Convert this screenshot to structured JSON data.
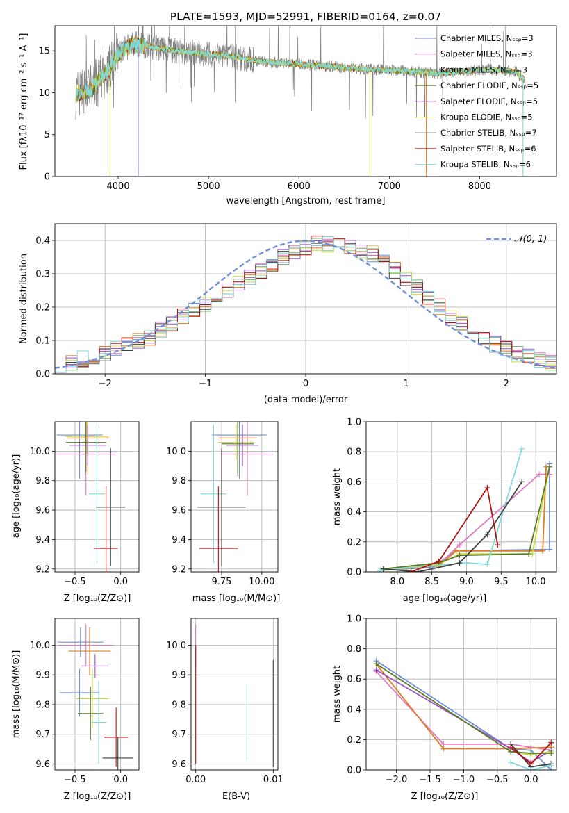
{
  "title": "PLATE=1593, MJD=52991, FIBERID=0164, z=0.07",
  "colors": {
    "chabrier_miles": "#6f8fd8",
    "salpeter_miles": "#e377c2",
    "kroupa_miles": "#70b870",
    "chabrier_elodie": "#5a7a2a",
    "salpeter_elodie": "#9b4fc4",
    "kroupa_elodie": "#c8d840",
    "chabrier_stelib": "#404040",
    "salpeter_stelib": "#b31010",
    "kroupa_stelib": "#80d8d8",
    "gaussian": "#6f8fd8",
    "orange": "#e07b20",
    "data": "#808080"
  },
  "spectrum": {
    "xlabel": "wavelength [Angstrom, rest frame]",
    "ylabel": "Flux [fλ10⁻¹⁷ erg cm⁻² s⁻¹ A⁻¹]",
    "legend": [
      {
        "label": "Chabrier MILES, Nₛₛₚ=3",
        "color": "chabrier_miles"
      },
      {
        "label": "Salpeter MILES, Nₛₛₚ=3",
        "color": "salpeter_miles"
      },
      {
        "label": "Kroupa MILES, Nₛₛₚ=3",
        "color": "kroupa_miles"
      },
      {
        "label": "Chabrier ELODIE, Nₛₛₚ=5",
        "color": "chabrier_elodie"
      },
      {
        "label": "Salpeter ELODIE, Nₛₛₚ=5",
        "color": "salpeter_elodie"
      },
      {
        "label": "Kroupa ELODIE, Nₛₛₚ=5",
        "color": "kroupa_elodie"
      },
      {
        "label": "Chabrier STELIB, Nₛₛₚ=7",
        "color": "chabrier_stelib"
      },
      {
        "label": "Salpeter STELIB, Nₛₛₚ=6",
        "color": "salpeter_stelib"
      },
      {
        "label": "Kroupa STELIB, Nₛₛₚ=6",
        "color": "kroupa_stelib"
      }
    ]
  },
  "residuals": {
    "xlabel": "(data-model)/error",
    "ylabel": "Normed distribution",
    "legend_label": "𝒩(0, 1)"
  },
  "labels": {
    "age_y": "age  [log₁₀(age/yr)]",
    "z_x": "Z [log₁₀(Z/Z⊙)]",
    "mass_x": "mass [log₁₀(M/M⊙)]",
    "mass_y": "mass [log₁₀(M/M⊙)]",
    "age_x": "age  [log₁₀(age/yr)]",
    "weight_y": "mass weight",
    "ebv_x": "E(B-V)"
  },
  "chart_data": [
    {
      "type": "line",
      "panel": "spectrum",
      "title": "PLATE=1593, MJD=52991, FIBERID=0164, z=0.07",
      "xlim": [
        3300,
        8850
      ],
      "ylim": [
        0,
        18
      ],
      "xticks": [
        4000,
        5000,
        6000,
        7000,
        8000
      ],
      "yticks": [
        0,
        5,
        10,
        15
      ],
      "continuum": {
        "x": [
          3530,
          3700,
          3900,
          4000,
          4150,
          4300,
          4500,
          4800,
          5000,
          5300,
          5600,
          6000,
          6300,
          6600,
          6900,
          7200,
          7500,
          7800,
          8100,
          8400,
          8500
        ],
        "y": [
          9.8,
          10.4,
          12.8,
          14.6,
          15.8,
          15.6,
          15.2,
          14.8,
          14.6,
          14.3,
          13.7,
          13.4,
          13.2,
          12.9,
          12.7,
          12.6,
          12.3,
          12.5,
          12.8,
          12.5,
          11.5
        ]
      },
      "grid": false
    },
    {
      "type": "line",
      "panel": "residuals",
      "xlim": [
        -2.5,
        2.5
      ],
      "ylim": [
        0,
        0.45
      ],
      "xticks": [
        -2,
        -1,
        0,
        1,
        2
      ],
      "yticks": [
        0.0,
        0.1,
        0.2,
        0.3,
        0.4
      ],
      "bins": 45,
      "hist_reference": [
        0.03,
        0.035,
        0.045,
        0.05,
        0.06,
        0.075,
        0.085,
        0.1,
        0.11,
        0.13,
        0.15,
        0.17,
        0.19,
        0.21,
        0.23,
        0.25,
        0.27,
        0.29,
        0.31,
        0.33,
        0.35,
        0.37,
        0.38,
        0.39,
        0.39,
        0.395,
        0.38,
        0.37,
        0.36,
        0.34,
        0.31,
        0.28,
        0.26,
        0.23,
        0.2,
        0.17,
        0.15,
        0.13,
        0.11,
        0.09,
        0.075,
        0.06,
        0.05,
        0.04,
        0.035
      ],
      "grid": true
    },
    {
      "type": "scatter",
      "panel": "age_vs_Z",
      "xlim": [
        -0.72,
        0.2
      ],
      "ylim": [
        9.18,
        10.2
      ],
      "xticks": [
        -0.5,
        0.0
      ],
      "yticks": [
        9.2,
        9.4,
        9.6,
        9.8,
        10.0
      ],
      "points": [
        {
          "series": "chabrier_miles",
          "x": -0.45,
          "y": 10.11,
          "xerr": 0.25,
          "yerr": 0.3
        },
        {
          "series": "salpeter_miles",
          "x": -0.38,
          "y": 9.98,
          "xerr": 0.33,
          "yerr": 0.28
        },
        {
          "series": "orange",
          "x": -0.36,
          "y": 10.09,
          "xerr": 0.23,
          "yerr": 0.25
        },
        {
          "series": "kroupa_elodie",
          "x": -0.37,
          "y": 10.1,
          "xerr": 0.24,
          "yerr": 0.12
        },
        {
          "series": "chabrier_elodie",
          "x": -0.38,
          "y": 10.06,
          "xerr": 0.22,
          "yerr": 0.2
        },
        {
          "series": "salpeter_elodie",
          "x": -0.36,
          "y": 10.04,
          "xerr": 0.2,
          "yerr": 0.14
        },
        {
          "series": "kroupa_stelib",
          "x": -0.26,
          "y": 9.71,
          "xerr": 0.09,
          "yerr": 0.47
        },
        {
          "series": "chabrier_stelib",
          "x": -0.11,
          "y": 9.62,
          "xerr": 0.16,
          "yerr": 0.4
        },
        {
          "series": "salpeter_stelib",
          "x": -0.16,
          "y": 9.34,
          "xerr": 0.13,
          "yerr": 0.42
        }
      ],
      "grid": true
    },
    {
      "type": "scatter",
      "panel": "age_vs_mass",
      "xlim": [
        9.56,
        10.1
      ],
      "ylim": [
        9.18,
        10.2
      ],
      "xticks": [
        9.75,
        10.0
      ],
      "yticks": [
        9.2,
        9.4,
        9.6,
        9.8,
        10.0
      ],
      "points": [
        {
          "series": "chabrier_miles",
          "x": 9.86,
          "y": 10.11,
          "xerr": 0.17,
          "yerr": 0.3
        },
        {
          "series": "salpeter_miles",
          "x": 9.91,
          "y": 9.98,
          "xerr": 0.16,
          "yerr": 0.28
        },
        {
          "series": "orange",
          "x": 9.85,
          "y": 10.09,
          "xerr": 0.12,
          "yerr": 0.26
        },
        {
          "series": "kroupa_elodie",
          "x": 9.84,
          "y": 10.06,
          "xerr": 0.11,
          "yerr": 0.12
        },
        {
          "series": "chabrier_elodie",
          "x": 9.85,
          "y": 10.05,
          "xerr": 0.1,
          "yerr": 0.2
        },
        {
          "series": "salpeter_elodie",
          "x": 9.88,
          "y": 10.04,
          "xerr": 0.1,
          "yerr": 0.14
        },
        {
          "series": "kroupa_stelib",
          "x": 9.7,
          "y": 9.71,
          "xerr": 0.08,
          "yerr": 0.47
        },
        {
          "series": "chabrier_stelib",
          "x": 9.75,
          "y": 9.62,
          "xerr": 0.15,
          "yerr": 0.4
        },
        {
          "series": "salpeter_stelib",
          "x": 9.73,
          "y": 9.34,
          "xerr": 0.12,
          "yerr": 0.42
        }
      ],
      "grid": true
    },
    {
      "type": "line",
      "panel": "weight_vs_age",
      "xlim": [
        7.55,
        10.3
      ],
      "ylim": [
        0,
        1.0
      ],
      "xticks": [
        8.0,
        8.5,
        9.0,
        9.5,
        10.0
      ],
      "yticks": [
        0.0,
        0.2,
        0.4,
        0.6,
        0.8,
        1.0
      ],
      "series": [
        {
          "name": "chabrier_miles",
          "x": [
            7.75,
            8.5,
            8.85,
            10.2,
            10.2
          ],
          "y": [
            0.01,
            0.03,
            0.14,
            0.15,
            0.72
          ]
        },
        {
          "name": "salpeter_miles",
          "x": [
            7.8,
            8.6,
            8.9,
            10.05,
            10.2
          ],
          "y": [
            0.01,
            0.05,
            0.18,
            0.65,
            0.65
          ]
        },
        {
          "name": "orange",
          "x": [
            7.8,
            8.6,
            8.85,
            10.1,
            10.15
          ],
          "y": [
            0.01,
            0.04,
            0.14,
            0.14,
            0.7
          ]
        },
        {
          "name": "kroupa_elodie",
          "x": [
            7.8,
            8.6,
            8.9,
            9.95,
            10.2
          ],
          "y": [
            0.01,
            0.05,
            0.12,
            0.12,
            0.7
          ]
        },
        {
          "name": "chabrier_elodie",
          "x": [
            7.8,
            8.6,
            8.9,
            9.9,
            10.2
          ],
          "y": [
            0.02,
            0.06,
            0.11,
            0.12,
            0.7
          ]
        },
        {
          "name": "kroupa_stelib",
          "x": [
            7.75,
            8.5,
            9.0,
            9.3,
            9.8
          ],
          "y": [
            0.01,
            0.04,
            0.06,
            0.05,
            0.82
          ]
        },
        {
          "name": "chabrier_stelib",
          "x": [
            7.8,
            8.3,
            8.9,
            9.3,
            9.8
          ],
          "y": [
            0.02,
            0.0,
            0.06,
            0.25,
            0.6
          ]
        },
        {
          "name": "salpeter_stelib",
          "x": [
            8.2,
            8.6,
            9.3,
            9.45
          ],
          "y": [
            0.0,
            0.07,
            0.56,
            0.18
          ]
        }
      ],
      "grid": true
    },
    {
      "type": "scatter",
      "panel": "mass_vs_Z",
      "xlim": [
        -0.72,
        0.2
      ],
      "ylim": [
        9.58,
        10.09
      ],
      "xticks": [
        -0.5,
        0.0
      ],
      "yticks": [
        9.6,
        9.7,
        9.8,
        9.9,
        10.0
      ],
      "points": [
        {
          "series": "chabrier_miles",
          "x": -0.44,
          "y": 10.01,
          "xerr": 0.25,
          "yerr": 0.05
        },
        {
          "series": "salpeter_miles",
          "x": -0.38,
          "y": 10.0,
          "xerr": 0.3,
          "yerr": 0.07
        },
        {
          "series": "orange",
          "x": -0.34,
          "y": 9.98,
          "xerr": 0.23,
          "yerr": 0.08
        },
        {
          "series": "chabrier_miles",
          "x": -0.45,
          "y": 9.84,
          "xerr": 0.22,
          "yerr": 0.08
        },
        {
          "series": "salpeter_elodie",
          "x": -0.28,
          "y": 9.93,
          "xerr": 0.15,
          "yerr": 0.04
        },
        {
          "series": "kroupa_elodie",
          "x": -0.31,
          "y": 9.82,
          "xerr": 0.18,
          "yerr": 0.1
        },
        {
          "series": "chabrier_elodie",
          "x": -0.33,
          "y": 9.77,
          "xerr": 0.14,
          "yerr": 0.09
        },
        {
          "series": "kroupa_stelib",
          "x": -0.24,
          "y": 9.74,
          "xerr": 0.08,
          "yerr": 0.14
        },
        {
          "series": "salpeter_stelib",
          "x": -0.05,
          "y": 9.69,
          "xerr": 0.13,
          "yerr": 0.1
        },
        {
          "series": "chabrier_stelib",
          "x": -0.03,
          "y": 9.62,
          "xerr": 0.17,
          "yerr": 0.07
        }
      ],
      "grid": true
    },
    {
      "type": "scatter",
      "panel": "mass_vs_ebv",
      "xlim": [
        -0.0006,
        0.0106
      ],
      "ylim": [
        9.58,
        10.09
      ],
      "xticks": [
        0.0,
        0.01
      ],
      "yticks": [
        9.6,
        9.7,
        9.8,
        9.9,
        10.0
      ],
      "points": [
        {
          "series": "salpeter_miles",
          "x": 0.0,
          "y": 10.0,
          "yerr": 0.07
        },
        {
          "series": "salpeter_stelib",
          "x": 0.0,
          "y": 9.8,
          "yerr": 0.2
        },
        {
          "series": "kroupa_stelib",
          "x": 0.0066,
          "y": 9.74,
          "yerr": 0.13
        },
        {
          "series": "chabrier_stelib",
          "x": 0.01,
          "y": 9.77,
          "yerr": 0.18
        }
      ],
      "grid": true
    },
    {
      "type": "line",
      "panel": "weight_vs_Z",
      "xlim": [
        -2.45,
        0.38
      ],
      "ylim": [
        0,
        1.0
      ],
      "xticks": [
        -2.0,
        -1.5,
        -1.0,
        -0.5,
        0.0
      ],
      "yticks": [
        0.0,
        0.2,
        0.4,
        0.6,
        0.8,
        1.0
      ],
      "series": [
        {
          "name": "chabrier_miles",
          "x": [
            -2.3,
            -0.3,
            0.0,
            0.3
          ],
          "y": [
            0.72,
            0.14,
            0.13,
            0.0
          ]
        },
        {
          "name": "salpeter_miles",
          "x": [
            -2.3,
            -1.3,
            -0.3,
            0.3
          ],
          "y": [
            0.65,
            0.17,
            0.17,
            0.13
          ]
        },
        {
          "name": "orange",
          "x": [
            -2.3,
            -1.3,
            -0.3,
            0.3
          ],
          "y": [
            0.7,
            0.14,
            0.14,
            0.15
          ]
        },
        {
          "name": "salpeter_elodie",
          "x": [
            -2.3,
            -0.3,
            0.0,
            0.3
          ],
          "y": [
            0.66,
            0.14,
            0.05,
            0.13
          ]
        },
        {
          "name": "kroupa_elodie",
          "x": [
            -2.3,
            -0.3,
            0.0,
            0.3
          ],
          "y": [
            0.7,
            0.12,
            0.1,
            0.12
          ]
        },
        {
          "name": "chabrier_elodie",
          "x": [
            -2.3,
            -0.3,
            0.0,
            0.3
          ],
          "y": [
            0.7,
            0.12,
            0.11,
            0.11
          ]
        },
        {
          "name": "chabrier_stelib",
          "x": [
            -0.3,
            0.0,
            0.3
          ],
          "y": [
            0.17,
            0.02,
            0.04
          ]
        },
        {
          "name": "salpeter_stelib",
          "x": [
            -0.3,
            0.0,
            0.3
          ],
          "y": [
            0.15,
            0.04,
            0.18
          ]
        },
        {
          "name": "kroupa_stelib",
          "x": [
            -0.3,
            0.0,
            0.3
          ],
          "y": [
            0.05,
            0.0,
            0.03
          ]
        }
      ],
      "grid": true
    }
  ]
}
